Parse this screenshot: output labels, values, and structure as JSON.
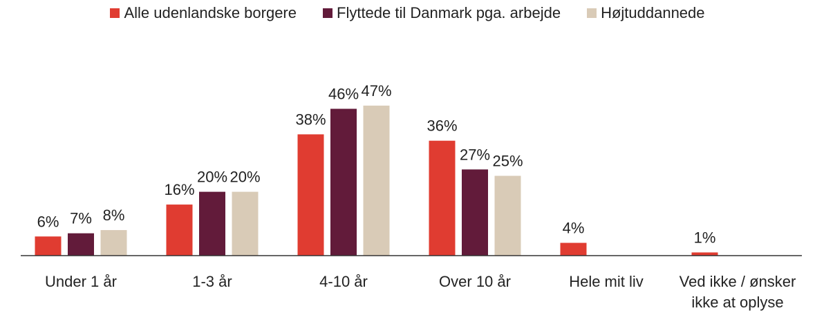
{
  "chart_data": {
    "type": "bar",
    "categories": [
      "Under 1 år",
      "1-3 år",
      "4-10 år",
      "Over 10 år",
      "Hele mit liv",
      "Ved ikke / ønsker ikke at oplyse"
    ],
    "series": [
      {
        "name": "Alle udenlandske borgere",
        "color": "#e03c31",
        "values": [
          6,
          16,
          38,
          36,
          4,
          1
        ],
        "value_labels": [
          "6%",
          "16%",
          "38%",
          "36%",
          "4%",
          "1%"
        ]
      },
      {
        "name": "Flyttede til Danmark pga. arbejde",
        "color": "#621b3a",
        "values": [
          7,
          20,
          46,
          27,
          null,
          null
        ],
        "value_labels": [
          "7%",
          "20%",
          "46%",
          "27%",
          null,
          null
        ]
      },
      {
        "name": "Højtuddannede",
        "color": "#d9cbb7",
        "values": [
          8,
          20,
          47,
          25,
          null,
          null
        ],
        "value_labels": [
          "8%",
          "20%",
          "47%",
          "25%",
          null,
          null
        ]
      }
    ],
    "ylim": [
      0,
      50
    ],
    "legend": "top"
  }
}
